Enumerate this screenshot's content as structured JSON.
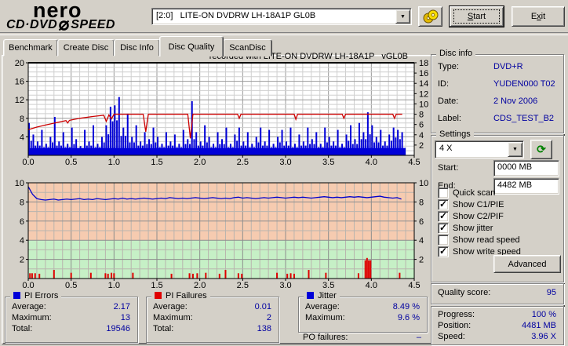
{
  "app": {
    "logo": {
      "line1": "nero",
      "line2_left": "CD·DVD",
      "line2_right": "SPEED"
    },
    "drive_combo": "[2:0]   LITE-ON DVDRW LH-18A1P GL0B",
    "buttons": {
      "start_u": "S",
      "start_rest": "tart",
      "exit_pre": "E",
      "exit_u": "x",
      "exit_rest": "it"
    }
  },
  "tabs": [
    {
      "label": "Benchmark",
      "active": false
    },
    {
      "label": "Create Disc",
      "active": false
    },
    {
      "label": "Disc Info",
      "active": false
    },
    {
      "label": "Disc Quality",
      "active": true
    },
    {
      "label": "ScanDisc",
      "active": false
    }
  ],
  "chart_data": [
    {
      "type": "bar",
      "title": "recorded with LITE-ON DVDRW LH-18A1P   vGL0B",
      "x_axis": {
        "ticks": [
          "0.0",
          "0.5",
          "1.0",
          "1.5",
          "2.0",
          "2.5",
          "3.0",
          "3.5",
          "4.0",
          "4.5"
        ],
        "range": [
          0,
          4.5
        ],
        "unit": "GB"
      },
      "left_axis": {
        "label": "PI Errors",
        "ticks": [
          20,
          16,
          12,
          8,
          4
        ],
        "range": [
          0,
          20
        ]
      },
      "right_axis": {
        "label": "Speed (X)",
        "ticks": [
          18,
          16,
          14,
          12,
          10,
          8,
          6,
          4,
          2
        ],
        "range": [
          0,
          18
        ]
      },
      "grid": true,
      "series": [
        {
          "name": "PI Errors",
          "type": "bar",
          "color": "#0000d8",
          "x_start": 0,
          "x_step": 0.05,
          "values": [
            7,
            4.5,
            3,
            5.5,
            2.5,
            4,
            8.3,
            3,
            5,
            2.5,
            6,
            3.5,
            2,
            5.5,
            3,
            6.5,
            2.5,
            4,
            6.5,
            10.5,
            10.8,
            12.6,
            6,
            9,
            4,
            6.5,
            3,
            5,
            3.5,
            6,
            4,
            2.5,
            5,
            3,
            4.5,
            2.5,
            5.5,
            3.5,
            11.7,
            5,
            3,
            6.5,
            4,
            2.5,
            5,
            3.5,
            6,
            2.5,
            4.5,
            6,
            3,
            5,
            2.5,
            4,
            6,
            3,
            5.5,
            2.5,
            4,
            5.5,
            3,
            6,
            2.5,
            4.5,
            3,
            6,
            3.5,
            5,
            2.5,
            6,
            4,
            3,
            5.5,
            2.5,
            4.5,
            6.5,
            3.5,
            7,
            5,
            9.3,
            6.5,
            4,
            5.5,
            3,
            4.5,
            6,
            5.5,
            5
          ]
        },
        {
          "name": "Write speed",
          "type": "line",
          "axis": "right",
          "color": "#cc0000",
          "points": [
            [
              0,
              5.0
            ],
            [
              0.1,
              5.5
            ],
            [
              0.2,
              5.9
            ],
            [
              0.3,
              6.25
            ],
            [
              0.44,
              6.75
            ],
            [
              0.46,
              6.3
            ],
            [
              0.48,
              6.8
            ],
            [
              0.6,
              7.2
            ],
            [
              0.75,
              7.55
            ],
            [
              0.88,
              7.8
            ],
            [
              0.91,
              6.6
            ],
            [
              0.94,
              7.85
            ],
            [
              0.97,
              7.1
            ],
            [
              1.0,
              8.0
            ],
            [
              1.34,
              8.0
            ],
            [
              1.37,
              4.6
            ],
            [
              1.4,
              8.0
            ],
            [
              1.86,
              8.0
            ],
            [
              1.89,
              3.3
            ],
            [
              1.92,
              8.0
            ],
            [
              2.44,
              8.0
            ],
            [
              2.46,
              7.2
            ],
            [
              2.48,
              8.0
            ],
            [
              3.1,
              8.0
            ],
            [
              3.12,
              7.0
            ],
            [
              3.14,
              8.0
            ],
            [
              3.66,
              8.0
            ],
            [
              3.68,
              7.2
            ],
            [
              3.7,
              8.0
            ],
            [
              4.25,
              8.0
            ],
            [
              4.27,
              7.2
            ],
            [
              4.29,
              8.0
            ],
            [
              4.36,
              8.0
            ]
          ]
        }
      ]
    },
    {
      "type": "line",
      "x_axis": {
        "ticks": [
          "0.0",
          "0.5",
          "1.0",
          "1.5",
          "2.0",
          "2.5",
          "3.0",
          "3.5",
          "4.0",
          "4.5"
        ],
        "range": [
          0,
          4.5
        ],
        "unit": "GB"
      },
      "y_axis": {
        "label": "Jitter (%)",
        "ticks": [
          10,
          8,
          6,
          4,
          2
        ],
        "range": [
          0,
          10
        ]
      },
      "zones": [
        {
          "from": 4,
          "to": 10,
          "color": "#f6cbb0"
        },
        {
          "from": 0,
          "to": 4,
          "color": "#c6f0c6"
        }
      ],
      "series": [
        {
          "name": "Jitter",
          "type": "line",
          "color": "#0000cc",
          "x_start": 0,
          "x_step": 0.05,
          "values": [
            9.6,
            8.8,
            8.35,
            8.25,
            8.2,
            8.25,
            8.3,
            8.2,
            8.25,
            8.3,
            8.25,
            8.3,
            8.35,
            8.25,
            8.3,
            8.25,
            8.35,
            8.3,
            8.25,
            8.3,
            8.35,
            8.3,
            8.4,
            8.3,
            8.35,
            8.3,
            8.35,
            8.4,
            8.35,
            8.3,
            8.35,
            8.4,
            8.35,
            8.45,
            8.4,
            8.35,
            8.4,
            8.35,
            8.4,
            8.45,
            8.4,
            8.35,
            8.4,
            8.45,
            8.4,
            8.35,
            8.4,
            8.35,
            8.45,
            8.5,
            8.4,
            8.45,
            8.4,
            8.35,
            8.4,
            8.45,
            8.4,
            8.45,
            8.5,
            8.45,
            8.4,
            8.45,
            8.5,
            8.45,
            8.5,
            8.45,
            8.4,
            8.45,
            8.5,
            8.55,
            8.5,
            8.45,
            8.5,
            8.45,
            8.5,
            8.55,
            8.5,
            8.55,
            8.5,
            8.45,
            8.5,
            8.55,
            8.6,
            8.5,
            8.45,
            8.4,
            8.45,
            8.3
          ]
        },
        {
          "name": "PI Failures",
          "type": "ticks",
          "color": "#e00000",
          "points": [
            [
              0.02,
              0.55
            ],
            [
              0.045,
              0.55
            ],
            [
              0.08,
              0.55
            ],
            [
              0.13,
              0.5
            ],
            [
              0.3,
              0.9
            ],
            [
              0.5,
              0.6
            ],
            [
              0.73,
              0.6
            ],
            [
              0.9,
              0.55
            ],
            [
              0.93,
              0.5
            ],
            [
              0.97,
              0.6
            ],
            [
              1.0,
              0.55
            ],
            [
              1.22,
              0.6
            ],
            [
              1.67,
              0.5
            ],
            [
              1.88,
              0.55
            ],
            [
              1.92,
              0.5
            ],
            [
              1.97,
              0.55
            ],
            [
              2.07,
              0.6
            ],
            [
              2.23,
              0.5
            ],
            [
              2.3,
              0.9
            ],
            [
              2.45,
              0.55
            ],
            [
              2.49,
              0.5
            ],
            [
              2.9,
              0.6
            ],
            [
              3.02,
              0.5
            ],
            [
              3.06,
              0.55
            ],
            [
              3.1,
              0.5
            ],
            [
              3.27,
              0.9
            ],
            [
              3.47,
              0.6
            ],
            [
              3.85,
              0.55
            ],
            [
              3.93,
              1.9
            ],
            [
              3.95,
              2.15
            ],
            [
              3.97,
              1.9
            ],
            [
              3.99,
              1.9
            ],
            [
              4.33,
              0.6
            ]
          ]
        }
      ]
    }
  ],
  "disc_info": {
    "title": "Disc info",
    "rows": [
      {
        "label": "Type:",
        "value": "DVD+R"
      },
      {
        "label": "ID:",
        "value": "YUDEN000 T02"
      },
      {
        "label": "Date:",
        "value": "2 Nov 2006"
      },
      {
        "label": "Label:",
        "value": "CDS_TEST_B2"
      }
    ]
  },
  "settings": {
    "title": "Settings",
    "speed_selected": "4 X",
    "start_label": "Start:",
    "start_value": "0000 MB",
    "end_label": "End:",
    "end_value": "4482 MB",
    "checkboxes": [
      {
        "label": "Quick scan",
        "checked": false
      },
      {
        "label": "Show C1/PIE",
        "checked": true
      },
      {
        "label": "Show C2/PIF",
        "checked": true
      },
      {
        "label": "Show jitter",
        "checked": true
      },
      {
        "label": "Show read speed",
        "checked": false
      },
      {
        "label": "Show write speed",
        "checked": true
      }
    ],
    "advanced_label": "Advanced"
  },
  "quality": {
    "label": "Quality score:",
    "value": "95"
  },
  "progress": {
    "rows": [
      {
        "label": "Progress:",
        "value": "100 %"
      },
      {
        "label": "Position:",
        "value": "4481 MB"
      },
      {
        "label": "Speed:",
        "value": "3.96 X"
      }
    ]
  },
  "stats": {
    "pi_errors": {
      "title": "PI Errors",
      "color": "#0000d8",
      "rows": [
        {
          "label": "Average:",
          "value": "2.17"
        },
        {
          "label": "Maximum:",
          "value": "13"
        },
        {
          "label": "Total:",
          "value": "19546"
        }
      ]
    },
    "pi_failures": {
      "title": "PI Failures",
      "color": "#e00000",
      "rows": [
        {
          "label": "Average:",
          "value": "0.01"
        },
        {
          "label": "Maximum:",
          "value": "2"
        },
        {
          "label": "Total:",
          "value": "138"
        }
      ]
    },
    "jitter": {
      "title": "Jitter",
      "color": "#0000d8",
      "rows": [
        {
          "label": "Average:",
          "value": "8.49 %"
        },
        {
          "label": "Maximum:",
          "value": "9.6 %"
        }
      ]
    },
    "po_failures": {
      "label": "PO failures:",
      "value": "–"
    }
  }
}
